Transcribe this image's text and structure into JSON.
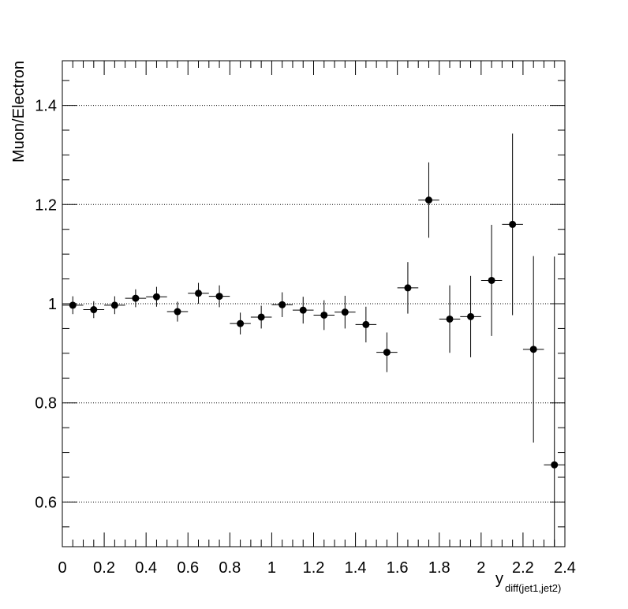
{
  "chart_data": {
    "type": "scatter",
    "xlabel": "y",
    "xlabel_subscript": "diff(jet1,jet2)",
    "ylabel": "Muon/Electron",
    "xlim": [
      0,
      2.4
    ],
    "ylim": [
      0.51,
      1.49
    ],
    "grid": "horizontal-dotted",
    "x_ticks": [
      "0",
      "0.2",
      "0.4",
      "0.6",
      "0.8",
      "1",
      "1.2",
      "1.4",
      "1.6",
      "1.8",
      "2",
      "2.2",
      "2.4"
    ],
    "y_ticks": [
      "0.6",
      "0.8",
      "1",
      "1.2",
      "1.4"
    ],
    "bin_half_width": 0.05,
    "series": [
      {
        "x": [
          0.05,
          0.15,
          0.25,
          0.35,
          0.45,
          0.55,
          0.65,
          0.75,
          0.85,
          0.95,
          1.05,
          1.15,
          1.25,
          1.35,
          1.45,
          1.55,
          1.65,
          1.75,
          1.85,
          1.95,
          2.05,
          2.15,
          2.25,
          2.35
        ],
        "y": [
          0.997,
          0.988,
          0.997,
          1.011,
          1.014,
          0.984,
          1.021,
          1.015,
          0.96,
          0.973,
          0.998,
          0.987,
          0.977,
          0.983,
          0.958,
          0.902,
          1.032,
          1.209,
          0.969,
          0.974,
          1.047,
          1.16,
          0.908,
          0.675
        ],
        "yerr": [
          0.018,
          0.017,
          0.018,
          0.018,
          0.02,
          0.02,
          0.021,
          0.022,
          0.022,
          0.023,
          0.025,
          0.027,
          0.03,
          0.033,
          0.036,
          0.04,
          0.052,
          0.076,
          0.068,
          0.082,
          0.112,
          0.183,
          0.188,
          0.42
        ]
      }
    ]
  }
}
